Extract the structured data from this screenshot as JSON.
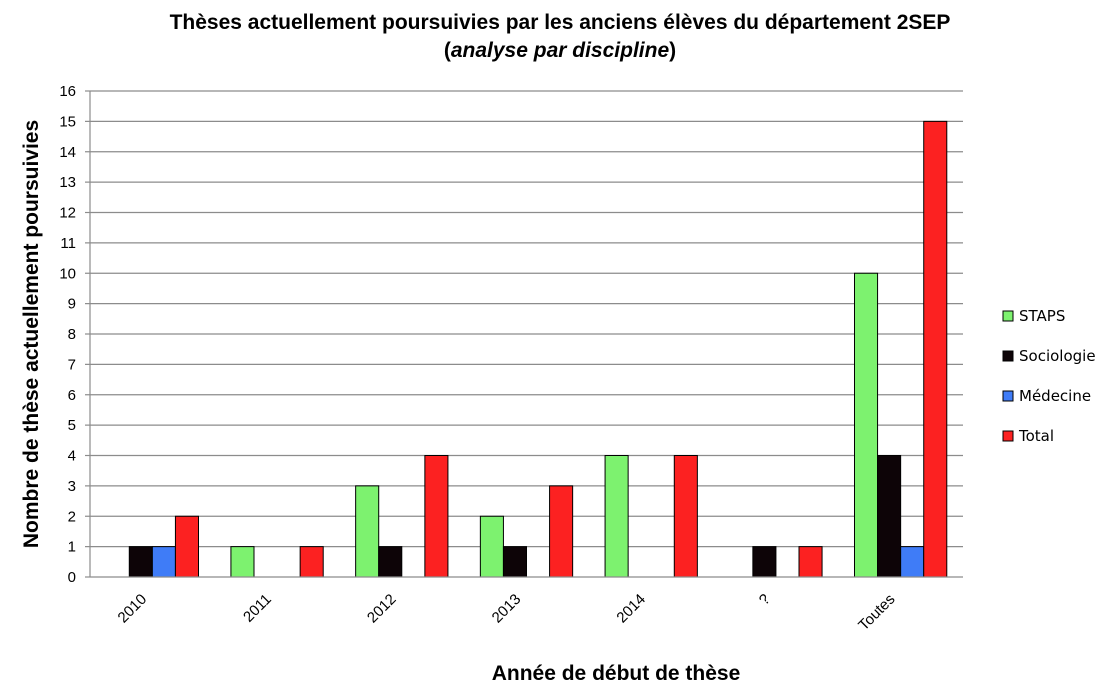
{
  "chart_data": {
    "type": "bar",
    "title": "Thèses actuellement poursuivies par les anciens élèves du département 2SEP",
    "subtitle": "analyse par discipline",
    "xlabel": "Année de début de thèse",
    "ylabel": "Nombre de thèse actuellement poursuivies",
    "ylim": [
      0,
      16
    ],
    "yticks": [
      "0",
      "1",
      "2",
      "3",
      "4",
      "5",
      "6",
      "7",
      "8",
      "9",
      "10",
      "11",
      "12",
      "13",
      "14",
      "15",
      "16"
    ],
    "grid": true,
    "legend_position": "right",
    "categories": [
      "2010",
      "2011",
      "2012",
      "2013",
      "2014",
      "?",
      "Toutes"
    ],
    "series": [
      {
        "name": "STAPS",
        "color": "#7df26f",
        "values": [
          0,
          1,
          3,
          2,
          4,
          0,
          10
        ]
      },
      {
        "name": "Sociologie",
        "color": "#0d0407",
        "values": [
          1,
          0,
          1,
          1,
          0,
          1,
          4
        ]
      },
      {
        "name": "Médecine",
        "color": "#3f7cf7",
        "values": [
          1,
          0,
          0,
          0,
          0,
          0,
          1
        ]
      },
      {
        "name": "Total",
        "color": "#fc2121",
        "values": [
          2,
          1,
          4,
          3,
          4,
          1,
          15
        ]
      }
    ]
  }
}
